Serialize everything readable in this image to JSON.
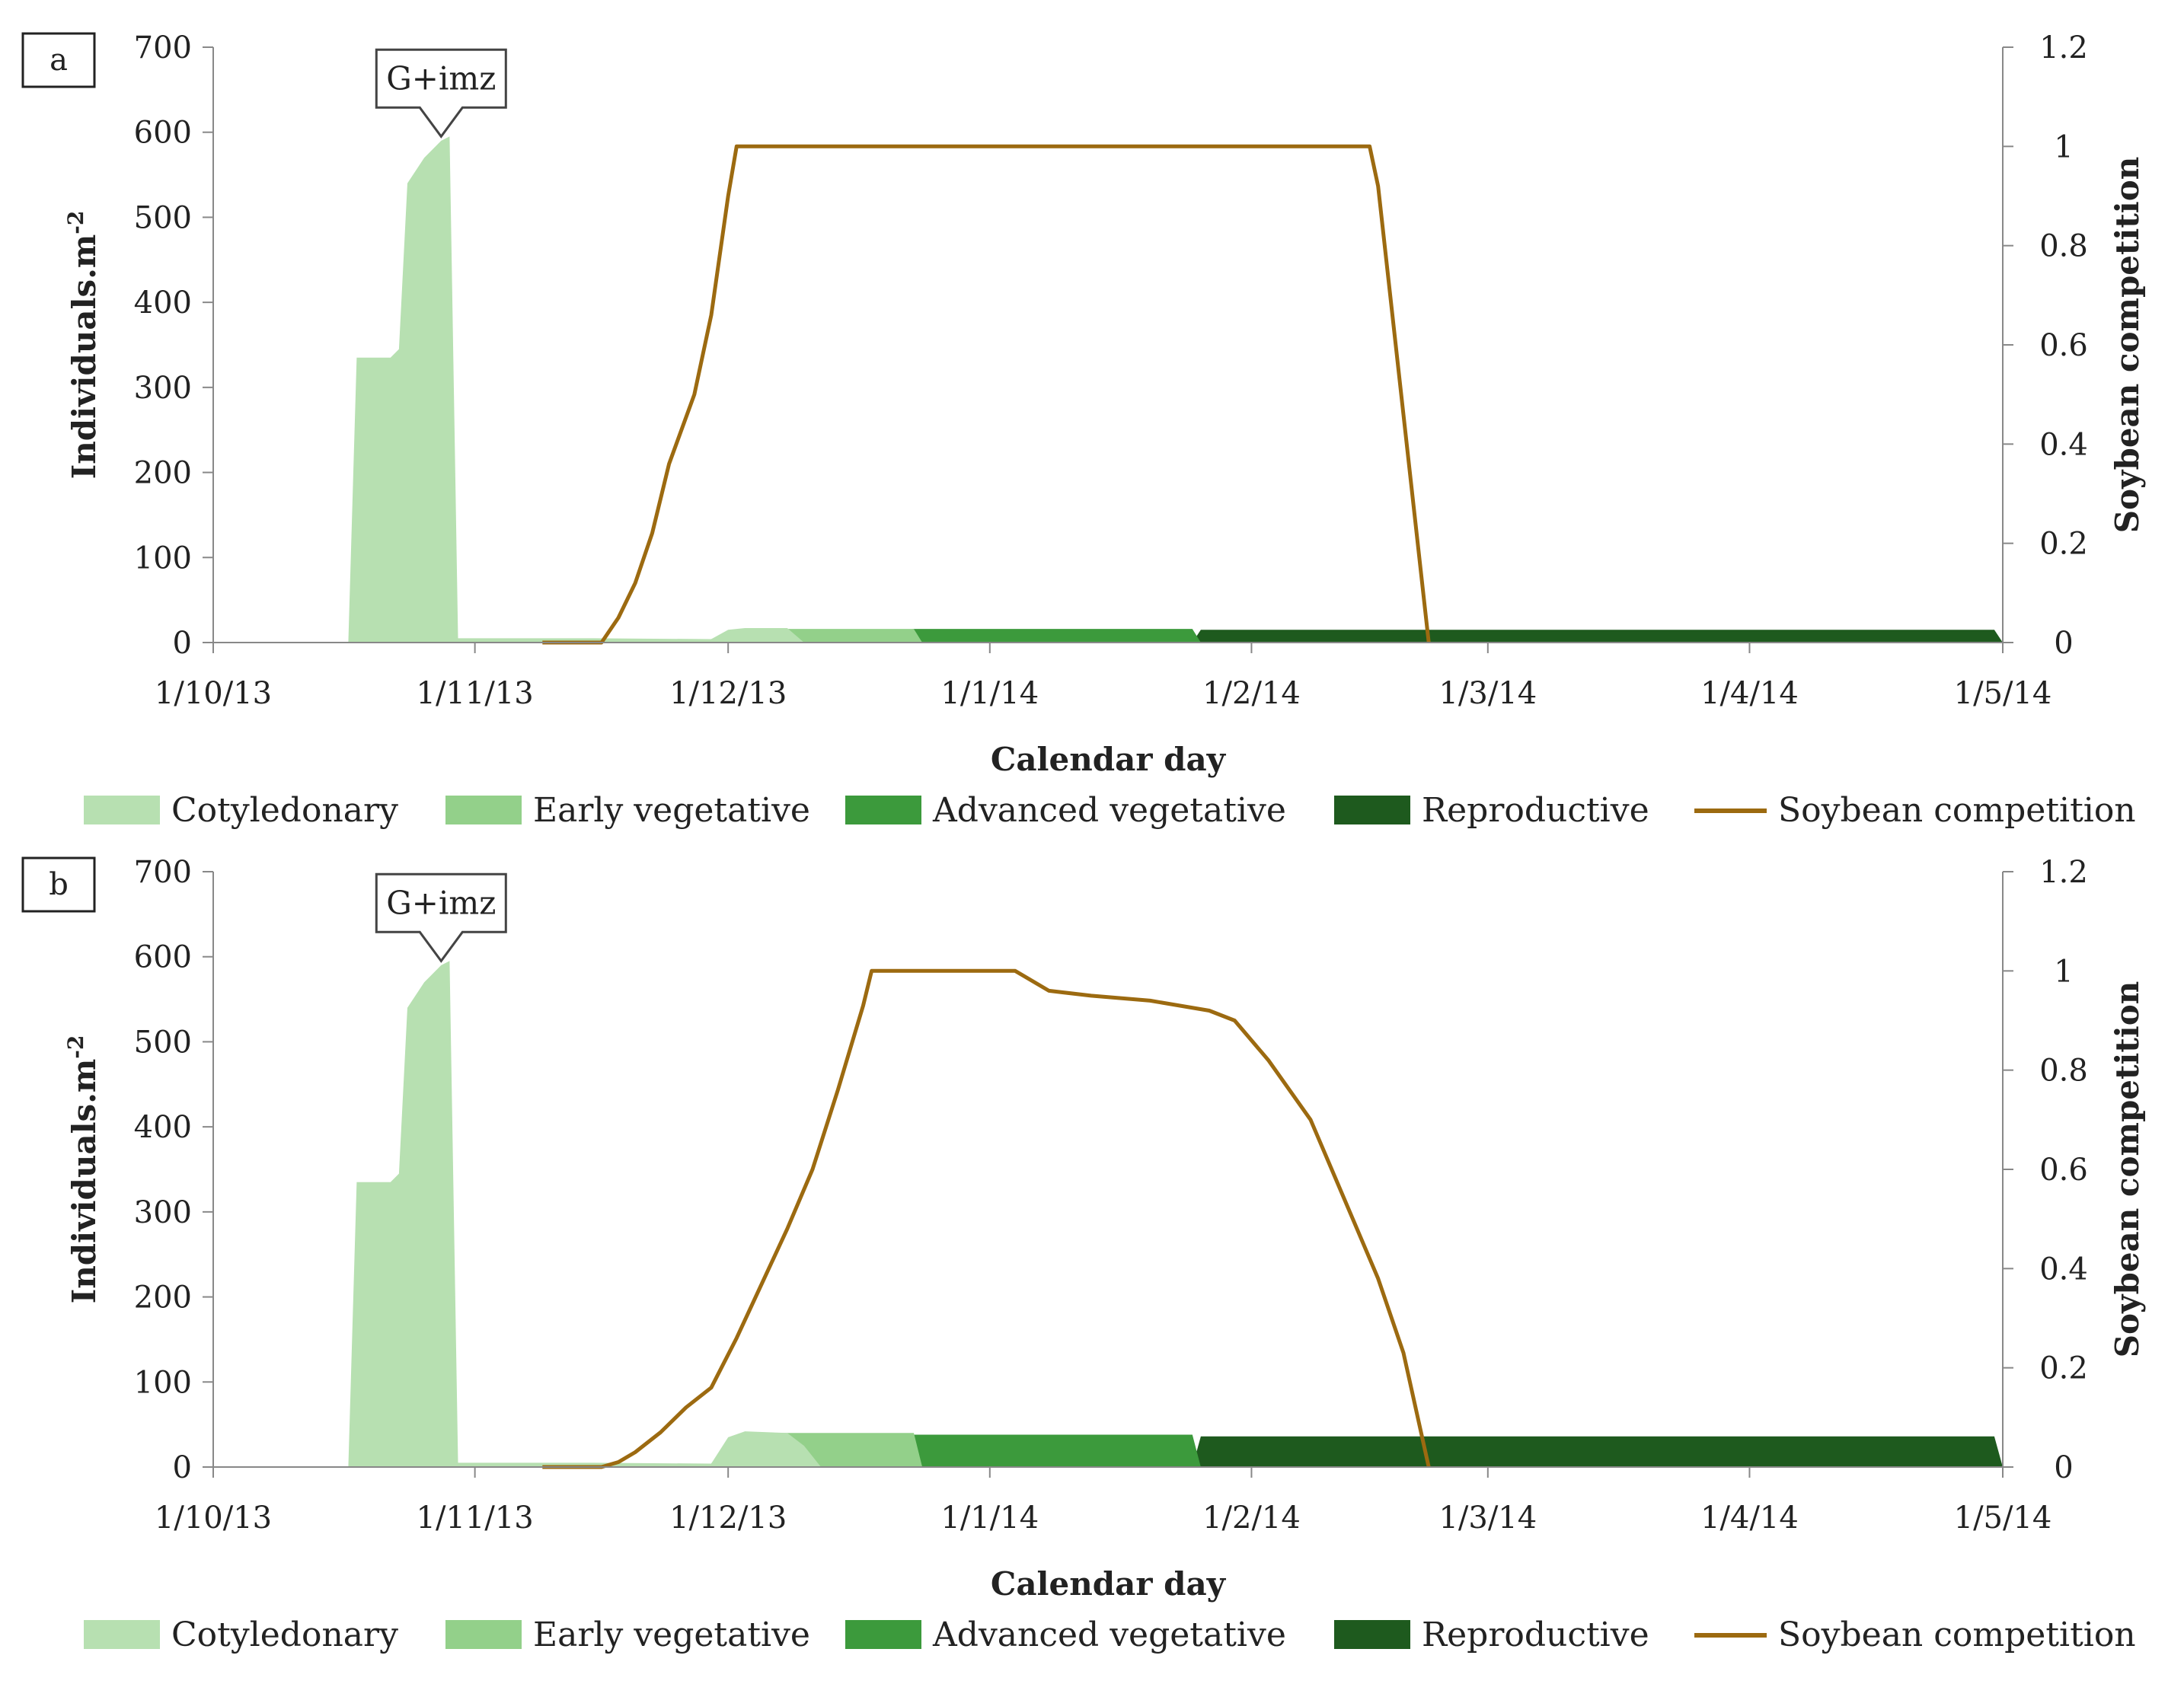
{
  "chart_data": [
    {
      "type": "area",
      "panel_label": "a",
      "annotation": {
        "text": "G+imz",
        "x": "28/10/13",
        "y": 595
      },
      "xlabel": "Calendar day",
      "ylabel": "Individuals.m",
      "ylabel_sup": "-2",
      "y2label": "Soybean competition",
      "x_ticks": [
        "1/10/13",
        "1/11/13",
        "1/12/13",
        "1/1/14",
        "1/2/14",
        "1/3/14",
        "1/4/14",
        "1/5/14"
      ],
      "ylim": [
        0,
        700
      ],
      "y_ticks": [
        0,
        100,
        200,
        300,
        400,
        500,
        600,
        700
      ],
      "y2lim": [
        0,
        1.2
      ],
      "y2_ticks": [
        0,
        0.2,
        0.4,
        0.6,
        0.8,
        1,
        1.2
      ],
      "legend_position": "bottom",
      "colors": {
        "Cotyledonary": "#b7e0b1",
        "Early vegetative": "#93d08a",
        "Advanced vegetative": "#3c9a3c",
        "Reproductive": "#1e5a1e",
        "Soybean competition": "#9c6a10"
      },
      "series": [
        {
          "name": "Cotyledonary",
          "axis": "left",
          "points": [
            [
              "17/10/13",
              0
            ],
            [
              "18/10/13",
              335
            ],
            [
              "22/10/13",
              335
            ],
            [
              "23/10/13",
              345
            ],
            [
              "24/10/13",
              540
            ],
            [
              "26/10/13",
              570
            ],
            [
              "28/10/13",
              590
            ],
            [
              "29/10/13",
              595
            ],
            [
              "30/10/13",
              5
            ],
            [
              "15/11/13",
              5
            ],
            [
              "29/11/13",
              4
            ],
            [
              "1/12/13",
              15
            ],
            [
              "3/12/13",
              17
            ],
            [
              "8/12/13",
              17
            ],
            [
              "10/12/13",
              0
            ]
          ]
        },
        {
          "name": "Early vegetative",
          "axis": "left",
          "points": [
            [
              "15/11/13",
              0
            ],
            [
              "16/11/13",
              2
            ],
            [
              "29/11/13",
              4
            ],
            [
              "1/12/13",
              12
            ],
            [
              "3/12/13",
              16
            ],
            [
              "10/12/13",
              16
            ],
            [
              "12/12/13",
              16
            ],
            [
              "23/12/13",
              16
            ],
            [
              "24/12/13",
              0
            ]
          ]
        },
        {
          "name": "Advanced vegetative",
          "axis": "left",
          "points": [
            [
              "10/12/13",
              0
            ],
            [
              "12/12/13",
              0
            ],
            [
              "23/12/13",
              16
            ],
            [
              "24/12/13",
              16
            ],
            [
              "25/1/14",
              16
            ],
            [
              "26/1/14",
              0
            ]
          ]
        },
        {
          "name": "Reproductive",
          "axis": "left",
          "points": [
            [
              "24/12/13",
              0
            ],
            [
              "25/1/14",
              0
            ],
            [
              "26/1/14",
              15
            ],
            [
              "30/4/14",
              15
            ],
            [
              "1/5/14",
              0
            ]
          ]
        },
        {
          "name": "Soybean competition",
          "axis": "right",
          "type": "line",
          "points": [
            [
              "9/11/13",
              0
            ],
            [
              "16/11/13",
              0
            ],
            [
              "18/11/13",
              0.05
            ],
            [
              "20/11/13",
              0.12
            ],
            [
              "22/11/13",
              0.22
            ],
            [
              "24/11/13",
              0.36
            ],
            [
              "27/11/13",
              0.5
            ],
            [
              "29/11/13",
              0.66
            ],
            [
              "30/11/13",
              0.78
            ],
            [
              "1/12/13",
              0.9
            ],
            [
              "2/12/13",
              1
            ],
            [
              "15/2/14",
              1
            ],
            [
              "16/2/14",
              0.92
            ],
            [
              "22/2/14",
              0
            ]
          ]
        }
      ]
    },
    {
      "type": "area",
      "panel_label": "b",
      "annotation": {
        "text": "G+imz",
        "x": "28/10/13",
        "y": 595
      },
      "xlabel": "Calendar day",
      "ylabel": "Individuals.m",
      "ylabel_sup": "-2",
      "y2label": "Soybean competition",
      "x_ticks": [
        "1/10/13",
        "1/11/13",
        "1/12/13",
        "1/1/14",
        "1/2/14",
        "1/3/14",
        "1/4/14",
        "1/5/14"
      ],
      "ylim": [
        0,
        700
      ],
      "y_ticks": [
        0,
        100,
        200,
        300,
        400,
        500,
        600,
        700
      ],
      "y2lim": [
        0,
        1.2
      ],
      "y2_ticks": [
        0,
        0.2,
        0.4,
        0.6,
        0.8,
        1,
        1.2
      ],
      "legend_position": "bottom",
      "colors": {
        "Cotyledonary": "#b7e0b1",
        "Early vegetative": "#93d08a",
        "Advanced vegetative": "#3c9a3c",
        "Reproductive": "#1e5a1e",
        "Soybean competition": "#9c6a10"
      },
      "series": [
        {
          "name": "Cotyledonary",
          "axis": "left",
          "points": [
            [
              "17/10/13",
              0
            ],
            [
              "18/10/13",
              335
            ],
            [
              "22/10/13",
              335
            ],
            [
              "23/10/13",
              345
            ],
            [
              "24/10/13",
              540
            ],
            [
              "26/10/13",
              570
            ],
            [
              "28/10/13",
              590
            ],
            [
              "29/10/13",
              595
            ],
            [
              "30/10/13",
              5
            ],
            [
              "15/11/13",
              5
            ],
            [
              "29/11/13",
              4
            ],
            [
              "1/12/13",
              35
            ],
            [
              "3/12/13",
              42
            ],
            [
              "8/12/13",
              40
            ],
            [
              "10/12/13",
              25
            ],
            [
              "12/12/13",
              0
            ]
          ]
        },
        {
          "name": "Early vegetative",
          "axis": "left",
          "points": [
            [
              "15/11/13",
              0
            ],
            [
              "16/11/13",
              2
            ],
            [
              "29/11/13",
              4
            ],
            [
              "1/12/13",
              30
            ],
            [
              "3/12/13",
              40
            ],
            [
              "10/12/13",
              40
            ],
            [
              "12/12/13",
              40
            ],
            [
              "23/12/13",
              40
            ],
            [
              "24/12/13",
              0
            ]
          ]
        },
        {
          "name": "Advanced vegetative",
          "axis": "left",
          "points": [
            [
              "12/12/13",
              0
            ],
            [
              "23/12/13",
              38
            ],
            [
              "24/12/13",
              38
            ],
            [
              "25/1/14",
              38
            ],
            [
              "26/1/14",
              0
            ]
          ]
        },
        {
          "name": "Reproductive",
          "axis": "left",
          "points": [
            [
              "24/12/13",
              0
            ],
            [
              "25/1/14",
              0
            ],
            [
              "26/1/14",
              36
            ],
            [
              "30/4/14",
              36
            ],
            [
              "1/5/14",
              0
            ]
          ]
        },
        {
          "name": "Soybean competition",
          "axis": "right",
          "type": "line",
          "points": [
            [
              "9/11/13",
              0
            ],
            [
              "16/11/13",
              0
            ],
            [
              "18/11/13",
              0.01
            ],
            [
              "20/11/13",
              0.03
            ],
            [
              "23/11/13",
              0.07
            ],
            [
              "26/11/13",
              0.12
            ],
            [
              "29/11/13",
              0.16
            ],
            [
              "2/12/13",
              0.26
            ],
            [
              "5/12/13",
              0.37
            ],
            [
              "8/12/13",
              0.48
            ],
            [
              "11/12/13",
              0.6
            ],
            [
              "14/12/13",
              0.76
            ],
            [
              "17/12/13",
              0.93
            ],
            [
              "18/12/13",
              1
            ],
            [
              "4/1/14",
              1
            ],
            [
              "5/1/14",
              0.99
            ],
            [
              "8/1/14",
              0.96
            ],
            [
              "13/1/14",
              0.95
            ],
            [
              "20/1/14",
              0.94
            ],
            [
              "27/1/14",
              0.92
            ],
            [
              "30/1/14",
              0.9
            ],
            [
              "3/2/14",
              0.82
            ],
            [
              "8/2/14",
              0.7
            ],
            [
              "12/2/14",
              0.54
            ],
            [
              "16/2/14",
              0.38
            ],
            [
              "19/2/14",
              0.23
            ],
            [
              "22/2/14",
              0
            ]
          ]
        }
      ]
    }
  ],
  "legend": [
    "Cotyledonary",
    "Early vegetative",
    "Advanced vegetative",
    "Reproductive",
    "Soybean competition"
  ]
}
